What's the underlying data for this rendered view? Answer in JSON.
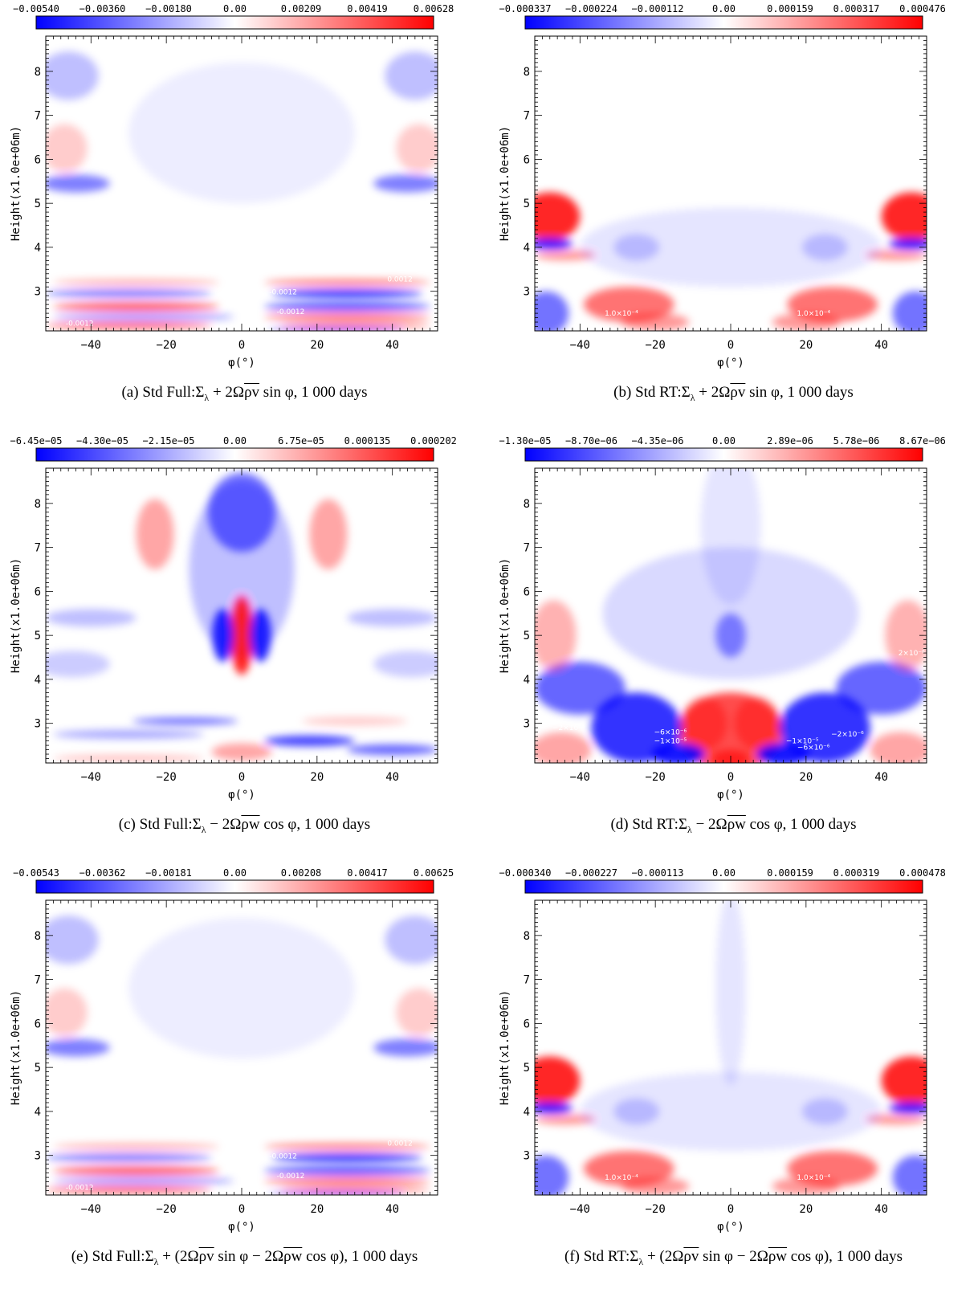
{
  "colors": {
    "negative": "#0000ff",
    "zero": "#ffffff",
    "positive": "#ff0000"
  },
  "shared_axes": {
    "xlabel": "φ(°)",
    "ylabel": "Height(x1.0e+06m)",
    "x_ticks": [
      "−40",
      "−20",
      "0",
      "20",
      "40"
    ],
    "y_ticks": [
      "3",
      "4",
      "5",
      "6",
      "7",
      "8"
    ]
  },
  "chart_data": [
    {
      "id": "a",
      "type": "heatmap",
      "caption": "(a)  Std Full:Σ_λ + 2Ω̅ρv̅ sin φ, 1 000 days",
      "caption_parts": {
        "pre": "(a)  Std Full:Σ",
        "sub": "λ",
        "mid": " + 2Ω",
        "over": "ρv",
        "post": " sin φ, 1 000 days"
      },
      "colorbar_ticks": [
        "−0.00540",
        "−0.00360",
        "−0.00180",
        "0.00",
        "0.00209",
        "0.00419",
        "0.00628"
      ],
      "colorbar_range": [
        -0.0054,
        0.00628
      ],
      "xlim": [
        -52,
        52
      ],
      "ylim": [
        2.1,
        8.8
      ],
      "contour_labels": [
        {
          "text": "0.0012",
          "x": 42,
          "y": 3.22
        },
        {
          "text": "-0.0012",
          "x": 11,
          "y": 2.93
        },
        {
          "text": "-0.0012",
          "x": 13,
          "y": 2.48
        },
        {
          "text": "-0.0012",
          "x": -43,
          "y": 2.22
        }
      ],
      "blobs": [
        {
          "x": -46,
          "y": 7.9,
          "rx": 8,
          "ry": 0.55,
          "v": -0.25
        },
        {
          "x": 46,
          "y": 7.9,
          "rx": 8,
          "ry": 0.55,
          "v": -0.25
        },
        {
          "x": -47,
          "y": 6.25,
          "rx": 6,
          "ry": 0.55,
          "v": 0.2
        },
        {
          "x": 47,
          "y": 6.25,
          "rx": 6,
          "ry": 0.55,
          "v": 0.2
        },
        {
          "x": -44,
          "y": 5.45,
          "rx": 9,
          "ry": 0.2,
          "v": -0.5
        },
        {
          "x": 44,
          "y": 5.45,
          "rx": 9,
          "ry": 0.2,
          "v": -0.5
        },
        {
          "x": 0,
          "y": 6.6,
          "rx": 30,
          "ry": 1.6,
          "v": -0.07
        },
        {
          "x": -28,
          "y": 3.2,
          "rx": 22,
          "ry": 0.08,
          "v": 0.3
        },
        {
          "x": 28,
          "y": 3.2,
          "rx": 22,
          "ry": 0.08,
          "v": 0.5
        },
        {
          "x": -30,
          "y": 2.95,
          "rx": 22,
          "ry": 0.09,
          "v": -0.55
        },
        {
          "x": 28,
          "y": 2.95,
          "rx": 20,
          "ry": 0.09,
          "v": -0.85
        },
        {
          "x": -28,
          "y": 2.65,
          "rx": 22,
          "ry": 0.1,
          "v": 0.65
        },
        {
          "x": 28,
          "y": 2.65,
          "rx": 22,
          "ry": 0.1,
          "v": -0.7
        },
        {
          "x": -26,
          "y": 2.42,
          "rx": 24,
          "ry": 0.08,
          "v": -0.45
        },
        {
          "x": 28,
          "y": 2.42,
          "rx": 22,
          "ry": 0.08,
          "v": 0.6
        },
        {
          "x": -30,
          "y": 2.22,
          "rx": 22,
          "ry": 0.07,
          "v": 0.7
        },
        {
          "x": 30,
          "y": 2.22,
          "rx": 20,
          "ry": 0.07,
          "v": 0.5
        },
        {
          "x": 25,
          "y": 2.12,
          "rx": 18,
          "ry": 0.04,
          "v": -0.8
        }
      ]
    },
    {
      "id": "b",
      "type": "heatmap",
      "caption": "(b)  Std RT:Σ_λ + 2Ω̅ρv̅ sin φ, 1 000 days",
      "caption_parts": {
        "pre": "(b)  Std RT:Σ",
        "sub": "λ",
        "mid": " + 2Ω",
        "over": "ρv",
        "post": " sin φ, 1 000 days"
      },
      "colorbar_ticks": [
        "−0.000337",
        "−0.000224",
        "−0.000112",
        "0.00",
        "0.000159",
        "0.000317",
        "0.000476"
      ],
      "colorbar_range": [
        -0.000337,
        0.000476
      ],
      "xlim": [
        -52,
        52
      ],
      "ylim": [
        2.1,
        8.8
      ],
      "contour_labels": [
        {
          "text": "1.0×10⁻⁴",
          "x": -29,
          "y": 2.45
        },
        {
          "text": "1.0×10⁻⁴",
          "x": 22,
          "y": 2.45
        }
      ],
      "blobs": [
        {
          "x": -48,
          "y": 4.7,
          "rx": 8,
          "ry": 0.55,
          "v": 0.85
        },
        {
          "x": 48,
          "y": 4.7,
          "rx": 8,
          "ry": 0.55,
          "v": 0.85
        },
        {
          "x": -48,
          "y": 4.08,
          "rx": 6,
          "ry": 0.12,
          "v": -0.9
        },
        {
          "x": 48,
          "y": 4.08,
          "rx": 6,
          "ry": 0.12,
          "v": -0.9
        },
        {
          "x": -44,
          "y": 3.82,
          "rx": 8,
          "ry": 0.12,
          "v": 0.4
        },
        {
          "x": 44,
          "y": 3.82,
          "rx": 8,
          "ry": 0.12,
          "v": 0.4
        },
        {
          "x": -49,
          "y": 2.5,
          "rx": 6,
          "ry": 0.5,
          "v": -0.55
        },
        {
          "x": 49,
          "y": 2.5,
          "rx": 6,
          "ry": 0.5,
          "v": -0.55
        },
        {
          "x": -27,
          "y": 2.7,
          "rx": 12,
          "ry": 0.4,
          "v": 0.55
        },
        {
          "x": 27,
          "y": 2.7,
          "rx": 12,
          "ry": 0.4,
          "v": 0.55
        },
        {
          "x": -20,
          "y": 2.3,
          "rx": 9,
          "ry": 0.2,
          "v": 0.4
        },
        {
          "x": 20,
          "y": 2.3,
          "rx": 9,
          "ry": 0.2,
          "v": 0.4
        },
        {
          "x": 0,
          "y": 4.0,
          "rx": 40,
          "ry": 0.9,
          "v": -0.1
        },
        {
          "x": -25,
          "y": 4.0,
          "rx": 6,
          "ry": 0.3,
          "v": -0.2
        },
        {
          "x": 25,
          "y": 4.0,
          "rx": 6,
          "ry": 0.3,
          "v": -0.2
        }
      ]
    },
    {
      "id": "c",
      "type": "heatmap",
      "caption": "(c)  Std Full:Σ_λ − 2Ω̅ρw̅ cos φ, 1 000 days",
      "caption_parts": {
        "pre": "(c)  Std Full:Σ",
        "sub": "λ",
        "mid": " − 2Ω",
        "over": "ρw",
        "post": " cos φ, 1 000 days"
      },
      "colorbar_ticks": [
        "−6.45e−05",
        "−4.30e−05",
        "−2.15e−05",
        "0.00",
        "6.75e−05",
        "0.000135",
        "0.000202"
      ],
      "colorbar_range": [
        -6.45e-05,
        0.000202
      ],
      "xlim": [
        -52,
        52
      ],
      "ylim": [
        2.1,
        8.8
      ],
      "contour_labels": [],
      "blobs": [
        {
          "x": 0,
          "y": 7.8,
          "rx": 9,
          "ry": 0.9,
          "v": -0.55
        },
        {
          "x": 0,
          "y": 6.5,
          "rx": 14,
          "ry": 2.0,
          "v": -0.25
        },
        {
          "x": -23,
          "y": 7.3,
          "rx": 5,
          "ry": 0.8,
          "v": 0.35
        },
        {
          "x": 23,
          "y": 7.3,
          "rx": 5,
          "ry": 0.8,
          "v": 0.35
        },
        {
          "x": 0,
          "y": 5.0,
          "rx": 3,
          "ry": 0.9,
          "v": 0.85
        },
        {
          "x": -5,
          "y": 5.0,
          "rx": 2.8,
          "ry": 0.6,
          "v": -0.85
        },
        {
          "x": 5,
          "y": 5.0,
          "rx": 2.8,
          "ry": 0.6,
          "v": -0.85
        },
        {
          "x": -40,
          "y": 5.4,
          "rx": 12,
          "ry": 0.2,
          "v": -0.25
        },
        {
          "x": 40,
          "y": 5.4,
          "rx": 12,
          "ry": 0.2,
          "v": -0.25
        },
        {
          "x": -45,
          "y": 4.35,
          "rx": 10,
          "ry": 0.3,
          "v": -0.2
        },
        {
          "x": 45,
          "y": 4.35,
          "rx": 10,
          "ry": 0.3,
          "v": -0.2
        },
        {
          "x": -15,
          "y": 3.05,
          "rx": 14,
          "ry": 0.08,
          "v": -0.6
        },
        {
          "x": 18,
          "y": 2.6,
          "rx": 12,
          "ry": 0.12,
          "v": -0.75
        },
        {
          "x": 40,
          "y": 2.4,
          "rx": 12,
          "ry": 0.12,
          "v": -0.6
        },
        {
          "x": -30,
          "y": 2.75,
          "rx": 20,
          "ry": 0.1,
          "v": -0.35
        },
        {
          "x": 0,
          "y": 2.35,
          "rx": 8,
          "ry": 0.2,
          "v": 0.35
        },
        {
          "x": -30,
          "y": 2.2,
          "rx": 20,
          "ry": 0.08,
          "v": 0.25
        },
        {
          "x": 30,
          "y": 3.05,
          "rx": 14,
          "ry": 0.1,
          "v": 0.2
        }
      ]
    },
    {
      "id": "d",
      "type": "heatmap",
      "caption": "(d)  Std RT:Σ_λ − 2Ω̅ρw̅ cos φ, 1 000 days",
      "caption_parts": {
        "pre": "(d)  Std RT:Σ",
        "sub": "λ",
        "mid": " − 2Ω",
        "over": "ρw",
        "post": " cos φ, 1 000 days"
      },
      "colorbar_ticks": [
        "−1.30e−05",
        "−8.70e−06",
        "−4.35e−06",
        "0.00",
        "2.89e−06",
        "5.78e−06",
        "8.67e−06"
      ],
      "colorbar_range": [
        -1.3e-05,
        8.67e-06
      ],
      "xlim": [
        -52,
        52
      ],
      "ylim": [
        2.1,
        8.8
      ],
      "contour_labels": [
        {
          "text": "−2×10⁻⁶",
          "x": -43,
          "y": 2.85
        },
        {
          "text": "−6×10⁻⁶",
          "x": -16,
          "y": 2.75
        },
        {
          "text": "−1×10⁻⁵",
          "x": -16,
          "y": 2.55
        },
        {
          "text": "−1×10⁻⁵",
          "x": 19,
          "y": 2.55
        },
        {
          "text": "−6×10⁻⁶",
          "x": 22,
          "y": 2.4
        },
        {
          "text": "−2×10⁻⁶",
          "x": 31,
          "y": 2.7
        },
        {
          "text": "2×10⁻⁶",
          "x": 48,
          "y": 4.55
        }
      ],
      "blobs": [
        {
          "x": 0,
          "y": 2.8,
          "rx": 14,
          "ry": 0.9,
          "v": 0.7
        },
        {
          "x": -7,
          "y": 3.0,
          "rx": 6,
          "ry": 0.6,
          "v": 0.4
        },
        {
          "x": 7,
          "y": 3.0,
          "rx": 6,
          "ry": 0.6,
          "v": 0.4
        },
        {
          "x": 0,
          "y": 2.2,
          "rx": 5,
          "ry": 0.2,
          "v": 0.6
        },
        {
          "x": -25,
          "y": 2.9,
          "rx": 12,
          "ry": 0.8,
          "v": -0.8
        },
        {
          "x": 25,
          "y": 2.9,
          "rx": 12,
          "ry": 0.8,
          "v": -0.8
        },
        {
          "x": -40,
          "y": 3.8,
          "rx": 12,
          "ry": 0.6,
          "v": -0.6
        },
        {
          "x": 40,
          "y": 3.8,
          "rx": 12,
          "ry": 0.6,
          "v": -0.6
        },
        {
          "x": -14,
          "y": 2.3,
          "rx": 7,
          "ry": 0.25,
          "v": -0.9
        },
        {
          "x": 14,
          "y": 2.3,
          "rx": 7,
          "ry": 0.25,
          "v": -0.9
        },
        {
          "x": -45,
          "y": 2.4,
          "rx": 8,
          "ry": 0.4,
          "v": 0.35
        },
        {
          "x": 45,
          "y": 2.4,
          "rx": 8,
          "ry": 0.4,
          "v": 0.35
        },
        {
          "x": -47,
          "y": 5.0,
          "rx": 6,
          "ry": 0.8,
          "v": 0.3
        },
        {
          "x": 47,
          "y": 5.0,
          "rx": 6,
          "ry": 0.8,
          "v": 0.3
        },
        {
          "x": 0,
          "y": 5.0,
          "rx": 4,
          "ry": 0.5,
          "v": -0.45
        },
        {
          "x": 0,
          "y": 5.5,
          "rx": 34,
          "ry": 1.5,
          "v": -0.15
        },
        {
          "x": 0,
          "y": 7.5,
          "rx": 8,
          "ry": 1.8,
          "v": -0.1
        }
      ]
    },
    {
      "id": "e",
      "type": "heatmap",
      "caption": "(e)  Std Full:Σ_λ + (2Ω̅ρv̅ sin φ − 2Ω̅ρw̅ cos φ), 1 000 days",
      "caption_parts": {
        "pre": "(e)  Std Full:Σ",
        "sub": "λ",
        "mid": " + (2Ω",
        "over": "ρv",
        "post": " sin φ − 2Ω",
        "over2": "ρw",
        "post2": " cos φ), 1 000 days"
      },
      "colorbar_ticks": [
        "−0.00543",
        "−0.00362",
        "−0.00181",
        "0.00",
        "0.00208",
        "0.00417",
        "0.00625"
      ],
      "colorbar_range": [
        -0.00543,
        0.00625
      ],
      "xlim": [
        -52,
        52
      ],
      "ylim": [
        2.1,
        8.8
      ],
      "contour_labels": [
        {
          "text": "0.0012",
          "x": 42,
          "y": 3.22
        },
        {
          "text": "-0.0012",
          "x": 11,
          "y": 2.93
        },
        {
          "text": "-0.0012",
          "x": 13,
          "y": 2.48
        },
        {
          "text": "-0.0012",
          "x": -43,
          "y": 2.22
        }
      ],
      "blobs": [
        {
          "x": -46,
          "y": 7.9,
          "rx": 8,
          "ry": 0.55,
          "v": -0.25
        },
        {
          "x": 46,
          "y": 7.9,
          "rx": 8,
          "ry": 0.55,
          "v": -0.25
        },
        {
          "x": -47,
          "y": 6.25,
          "rx": 6,
          "ry": 0.55,
          "v": 0.2
        },
        {
          "x": 47,
          "y": 6.25,
          "rx": 6,
          "ry": 0.55,
          "v": 0.2
        },
        {
          "x": -44,
          "y": 5.45,
          "rx": 9,
          "ry": 0.2,
          "v": -0.5
        },
        {
          "x": 44,
          "y": 5.45,
          "rx": 9,
          "ry": 0.2,
          "v": -0.5
        },
        {
          "x": 0,
          "y": 6.8,
          "rx": 30,
          "ry": 1.6,
          "v": -0.07
        },
        {
          "x": -28,
          "y": 3.2,
          "rx": 22,
          "ry": 0.08,
          "v": 0.3
        },
        {
          "x": 28,
          "y": 3.2,
          "rx": 22,
          "ry": 0.08,
          "v": 0.5
        },
        {
          "x": -30,
          "y": 2.95,
          "rx": 22,
          "ry": 0.09,
          "v": -0.55
        },
        {
          "x": 28,
          "y": 2.95,
          "rx": 20,
          "ry": 0.09,
          "v": -0.85
        },
        {
          "x": -28,
          "y": 2.65,
          "rx": 22,
          "ry": 0.1,
          "v": 0.65
        },
        {
          "x": 28,
          "y": 2.65,
          "rx": 22,
          "ry": 0.1,
          "v": -0.7
        },
        {
          "x": -26,
          "y": 2.42,
          "rx": 24,
          "ry": 0.08,
          "v": -0.45
        },
        {
          "x": 28,
          "y": 2.42,
          "rx": 22,
          "ry": 0.08,
          "v": 0.6
        },
        {
          "x": -30,
          "y": 2.22,
          "rx": 22,
          "ry": 0.07,
          "v": 0.7
        },
        {
          "x": 30,
          "y": 2.22,
          "rx": 20,
          "ry": 0.07,
          "v": 0.5
        },
        {
          "x": 25,
          "y": 2.12,
          "rx": 18,
          "ry": 0.04,
          "v": -0.8
        }
      ]
    },
    {
      "id": "f",
      "type": "heatmap",
      "caption": "(f)  Std RT:Σ_λ + (2Ω̅ρv̅ sin φ − 2Ω̅ρw̅ cos φ), 1 000 days",
      "caption_parts": {
        "pre": "(f)  Std RT:Σ",
        "sub": "λ",
        "mid": " + (2Ω",
        "over": "ρv",
        "post": " sin φ − 2Ω",
        "over2": "ρw",
        "post2": " cos φ), 1 000 days"
      },
      "colorbar_ticks": [
        "−0.000340",
        "−0.000227",
        "−0.000113",
        "0.00",
        "0.000159",
        "0.000319",
        "0.000478"
      ],
      "colorbar_range": [
        -0.00034,
        0.000478
      ],
      "xlim": [
        -52,
        52
      ],
      "ylim": [
        2.1,
        8.8
      ],
      "contour_labels": [
        {
          "text": "1.0×10⁻⁴",
          "x": -29,
          "y": 2.45
        },
        {
          "text": "1.0×10⁻⁴",
          "x": 22,
          "y": 2.45
        }
      ],
      "blobs": [
        {
          "x": -48,
          "y": 4.7,
          "rx": 8,
          "ry": 0.55,
          "v": 0.85
        },
        {
          "x": 48,
          "y": 4.7,
          "rx": 8,
          "ry": 0.55,
          "v": 0.85
        },
        {
          "x": -48,
          "y": 4.08,
          "rx": 6,
          "ry": 0.12,
          "v": -0.9
        },
        {
          "x": 48,
          "y": 4.08,
          "rx": 6,
          "ry": 0.12,
          "v": -0.9
        },
        {
          "x": -44,
          "y": 3.82,
          "rx": 8,
          "ry": 0.12,
          "v": 0.4
        },
        {
          "x": 44,
          "y": 3.82,
          "rx": 8,
          "ry": 0.12,
          "v": 0.4
        },
        {
          "x": -49,
          "y": 2.5,
          "rx": 6,
          "ry": 0.5,
          "v": -0.55
        },
        {
          "x": 49,
          "y": 2.5,
          "rx": 6,
          "ry": 0.5,
          "v": -0.55
        },
        {
          "x": -27,
          "y": 2.7,
          "rx": 12,
          "ry": 0.4,
          "v": 0.55
        },
        {
          "x": 27,
          "y": 2.7,
          "rx": 12,
          "ry": 0.4,
          "v": 0.55
        },
        {
          "x": -20,
          "y": 2.3,
          "rx": 9,
          "ry": 0.2,
          "v": 0.4
        },
        {
          "x": 20,
          "y": 2.3,
          "rx": 9,
          "ry": 0.2,
          "v": 0.4
        },
        {
          "x": 0,
          "y": 4.0,
          "rx": 40,
          "ry": 0.9,
          "v": -0.1
        },
        {
          "x": 0,
          "y": 6.8,
          "rx": 4,
          "ry": 2.2,
          "v": -0.1
        },
        {
          "x": -25,
          "y": 4.0,
          "rx": 6,
          "ry": 0.3,
          "v": -0.2
        },
        {
          "x": 25,
          "y": 4.0,
          "rx": 6,
          "ry": 0.3,
          "v": -0.2
        }
      ]
    }
  ]
}
